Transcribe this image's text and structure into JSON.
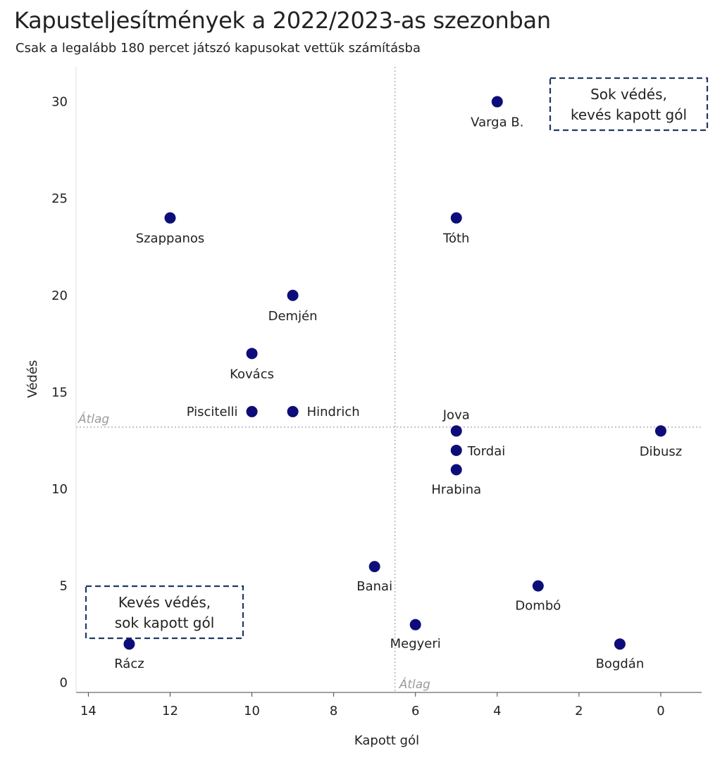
{
  "title": "Kapusteljesítmények a 2022/2023-as szezonban",
  "subtitle": "Csak a legalább 180 percet játszó kapusokat vettük számításba",
  "chart_data": {
    "type": "scatter",
    "xlabel": "Kapott gól",
    "ylabel": "Védés",
    "x_reversed": true,
    "xlim": [
      14.3,
      -1.0
    ],
    "ylim": [
      -0.5,
      31.8
    ],
    "xticks": [
      14,
      12,
      10,
      8,
      6,
      4,
      2,
      0
    ],
    "yticks": [
      0,
      5,
      10,
      15,
      20,
      25,
      30
    ],
    "grid": false,
    "point_color": "#0d0d7a",
    "average_lines": {
      "x": 6.5,
      "y": 13.2,
      "label": "Átlag",
      "color": "#aaaaaa"
    },
    "points": [
      {
        "name": "Varga B.",
        "x": 4,
        "y": 30
      },
      {
        "name": "Szappanos",
        "x": 12,
        "y": 24
      },
      {
        "name": "Tóth",
        "x": 5,
        "y": 24
      },
      {
        "name": "Demjén",
        "x": 9,
        "y": 20
      },
      {
        "name": "Kovács",
        "x": 10,
        "y": 17
      },
      {
        "name": "Piscitelli",
        "x": 10,
        "y": 14
      },
      {
        "name": "Hindrich",
        "x": 9,
        "y": 14
      },
      {
        "name": "Jova",
        "x": 5,
        "y": 13
      },
      {
        "name": "Dibusz",
        "x": 0,
        "y": 13
      },
      {
        "name": "Tordai",
        "x": 5,
        "y": 12
      },
      {
        "name": "Hrabina",
        "x": 5,
        "y": 11
      },
      {
        "name": "Banai",
        "x": 7,
        "y": 6
      },
      {
        "name": "Dombó",
        "x": 3,
        "y": 5
      },
      {
        "name": "Megyeri",
        "x": 6,
        "y": 3
      },
      {
        "name": "Rácz",
        "x": 13,
        "y": 2
      },
      {
        "name": "Bogdán",
        "x": 1,
        "y": 2
      }
    ],
    "annotations": [
      {
        "id": "top-right",
        "lines": [
          "Sok védés,",
          "kevés kapott gól"
        ],
        "position": "top-right"
      },
      {
        "id": "bottom-left",
        "lines": [
          "Kevés védés,",
          "sok kapott gól"
        ],
        "position": "bottom-left"
      }
    ]
  }
}
